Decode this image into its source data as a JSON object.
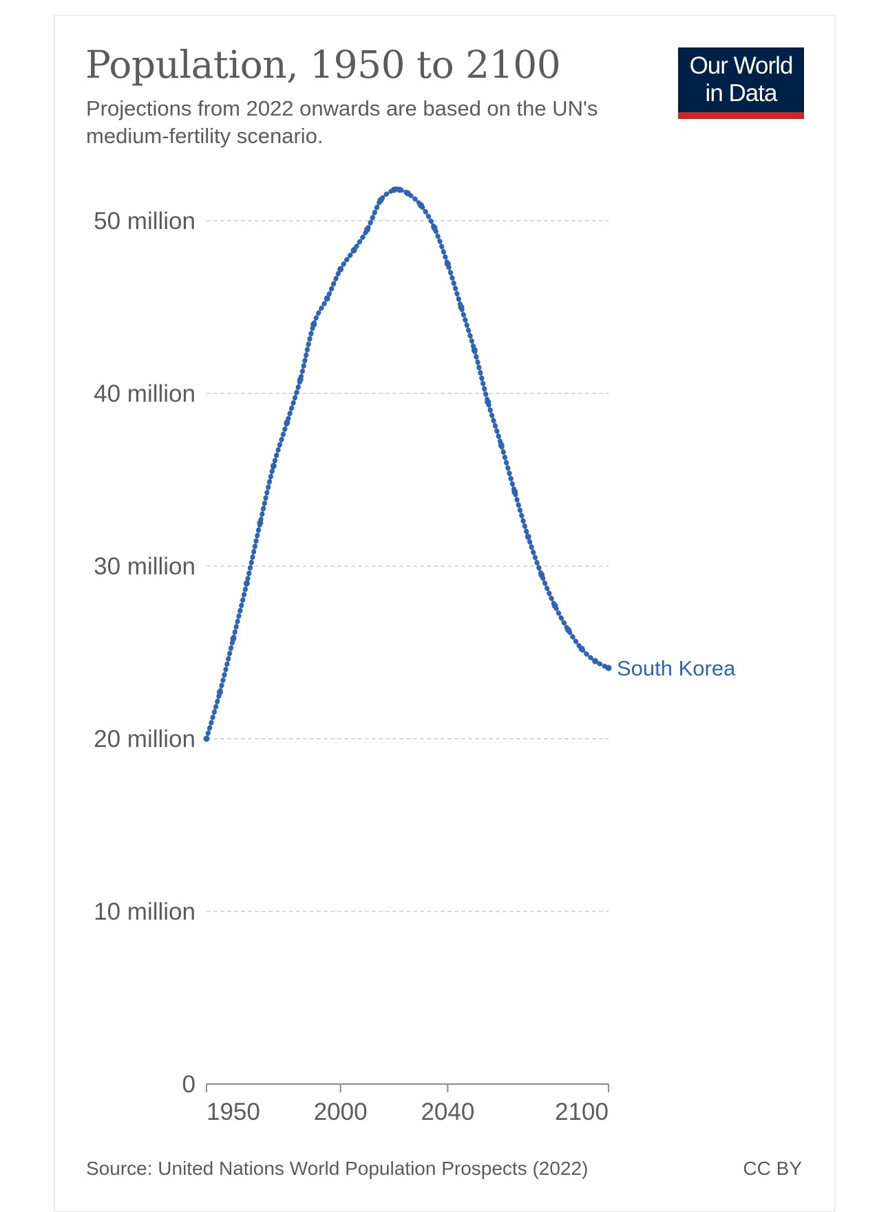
{
  "header": {
    "title": "Population, 1950 to 2100",
    "subtitle": "Projections from 2022 onwards are based on the UN's medium-fertility scenario.",
    "logo_line1": "Our World",
    "logo_line2": "in Data"
  },
  "footer": {
    "source": "Source: United Nations World Population Prospects (2022)",
    "license": "CC BY"
  },
  "colors": {
    "series": "#2f64b3",
    "logo_bg": "#002147",
    "logo_accent": "#ce261e",
    "text": "#5b5b5b",
    "grid": "#d9d9d9"
  },
  "chart_data": {
    "type": "line",
    "title": "Population, 1950 to 2100",
    "subtitle": "Projections from 2022 onwards are based on the UN's medium-fertility scenario.",
    "xlim": [
      1950,
      2100
    ],
    "ylim": [
      0,
      55000000
    ],
    "y_ticks": [
      0,
      10000000,
      20000000,
      30000000,
      40000000,
      50000000
    ],
    "y_tick_labels": [
      "0",
      "10 million",
      "20 million",
      "30 million",
      "40 million",
      "50 million"
    ],
    "x_ticks": [
      1950,
      2000,
      2040,
      2100
    ],
    "x_tick_labels": [
      "1950",
      "2000",
      "2040",
      "2100"
    ],
    "grid": "horizontal-dashed",
    "legend": "inline-end-label",
    "series": [
      {
        "name": "South Korea",
        "x": [
          1950,
          1955,
          1960,
          1965,
          1970,
          1975,
          1980,
          1985,
          1990,
          1995,
          2000,
          2005,
          2010,
          2015,
          2020,
          2022,
          2025,
          2030,
          2035,
          2040,
          2045,
          2050,
          2055,
          2060,
          2065,
          2070,
          2075,
          2080,
          2085,
          2090,
          2095,
          2100
        ],
        "values": [
          20000000,
          22700000,
          25800000,
          29000000,
          32500000,
          35800000,
          38300000,
          40800000,
          44000000,
          45500000,
          47200000,
          48300000,
          49500000,
          51200000,
          51800000,
          51800000,
          51600000,
          50900000,
          49600000,
          47500000,
          45000000,
          42500000,
          39500000,
          37000000,
          34300000,
          31700000,
          29500000,
          27700000,
          26300000,
          25200000,
          24500000,
          24100000
        ]
      }
    ]
  }
}
